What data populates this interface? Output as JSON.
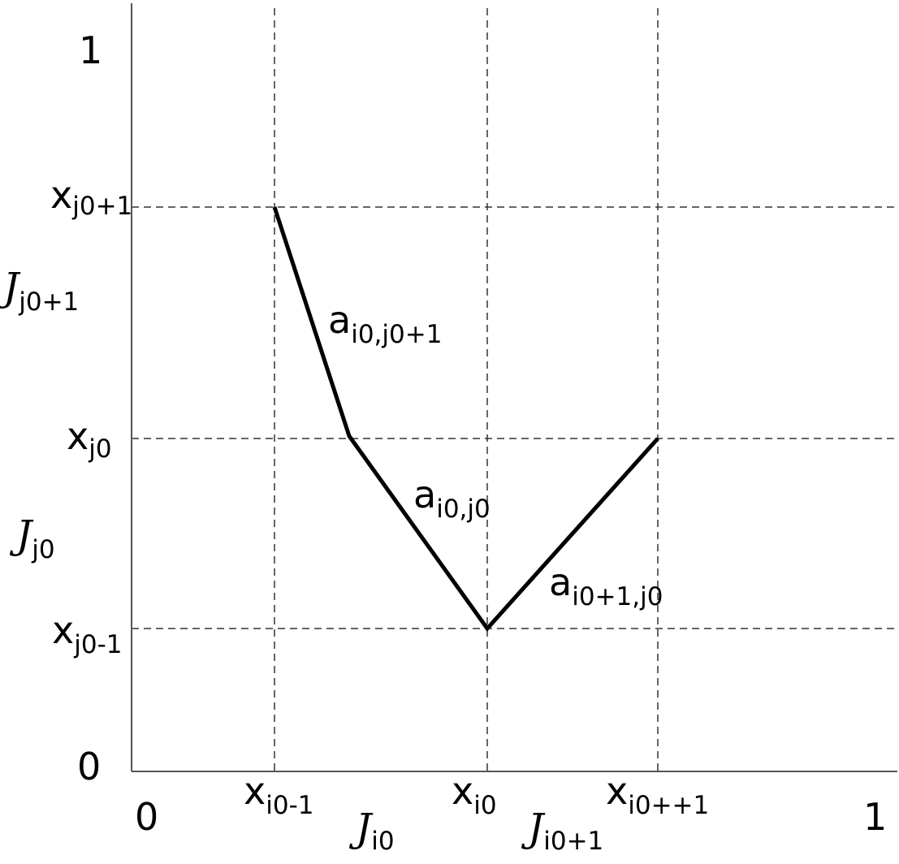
{
  "axes": {
    "y_top": "1",
    "y_origin": "0",
    "x_origin": "0",
    "x_right": "1"
  },
  "y_labels": [
    {
      "base": "x",
      "sub": "j0+1"
    },
    {
      "base": "J",
      "sub": "j0+1"
    },
    {
      "base": "x",
      "sub": "j0"
    },
    {
      "base": "J",
      "sub": "j0"
    },
    {
      "base": "x",
      "sub": "j0-1"
    }
  ],
  "x_labels": [
    {
      "base": "x",
      "sub": "i0-1"
    },
    {
      "base": "J",
      "sub": "i0"
    },
    {
      "base": "x",
      "sub": "i0"
    },
    {
      "base": "J",
      "sub": "i0+1"
    },
    {
      "base": "x",
      "sub": "i0++1"
    }
  ],
  "segment_labels": [
    {
      "base": "a",
      "sub": "i0,j0+1"
    },
    {
      "base": "a",
      "sub": "i0,j0"
    },
    {
      "base": "a",
      "sub": "i0+1,j0"
    }
  ]
}
